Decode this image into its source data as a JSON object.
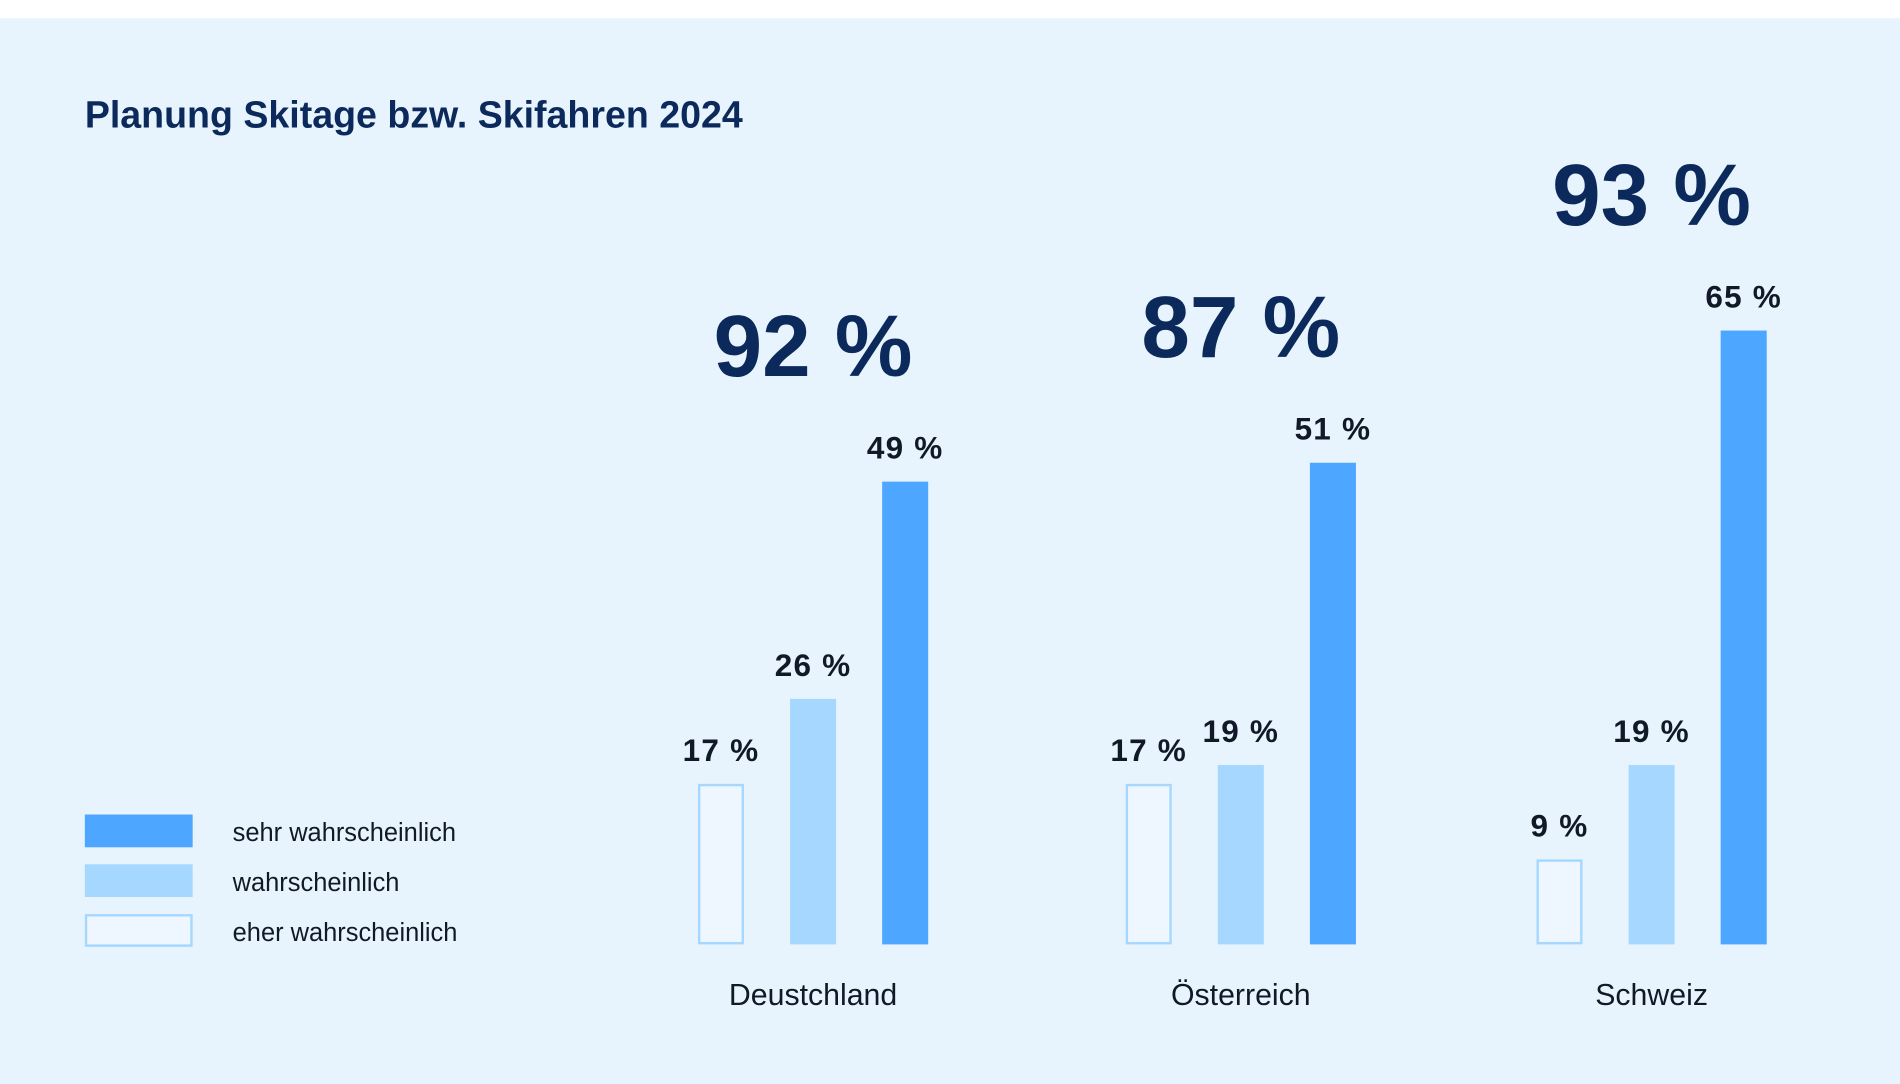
{
  "chart_data": {
    "type": "bar",
    "title": "Planung Skitage bzw. Skifahren 2024",
    "categories": [
      "Deustchland",
      "Österreich",
      "Schweiz"
    ],
    "totals": [
      "92 %",
      "87 %",
      "93 %"
    ],
    "series": [
      {
        "name": "eher wahrscheinlich",
        "values": [
          17,
          17,
          9
        ],
        "color": "#a6d8ff",
        "style": "outline"
      },
      {
        "name": "wahrscheinlich",
        "values": [
          26,
          19,
          19
        ],
        "color": "#a6d8ff",
        "style": "fill"
      },
      {
        "name": "sehr wahrscheinlich",
        "values": [
          49,
          51,
          65
        ],
        "color": "#4da6ff",
        "style": "fill"
      }
    ],
    "value_suffix": " %",
    "xlabel": "",
    "ylabel": "",
    "ylim": [
      0,
      70
    ],
    "grid": false,
    "legend_position": "bottom-left",
    "legend_order": [
      "sehr wahrscheinlich",
      "wahrscheinlich",
      "eher wahrscheinlich"
    ]
  },
  "colors": {
    "background": "#e8f4fd",
    "title": "#0b2a5b",
    "label": "#111827"
  }
}
